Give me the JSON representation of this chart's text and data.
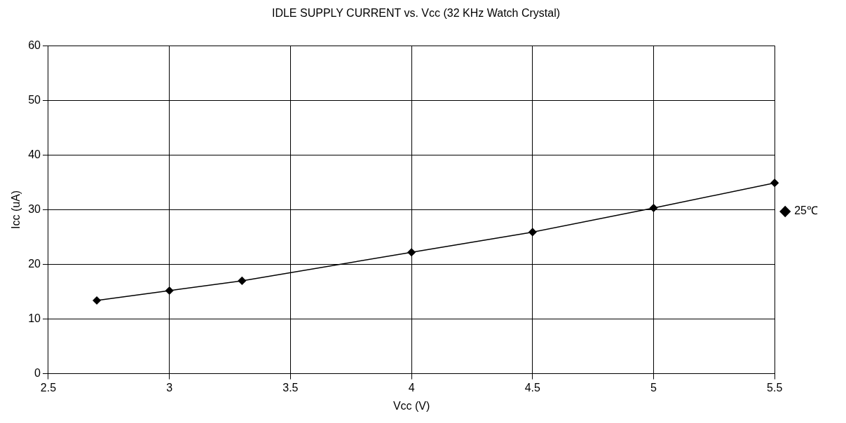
{
  "chart_data": {
    "type": "line",
    "title": "IDLE SUPPLY CURRENT vs. Vcc (32 KHz Watch Crystal)",
    "xlabel": "Vcc (V)",
    "ylabel": "Icc (uA)",
    "x": [
      2.7,
      3,
      3.3,
      4,
      4.5,
      5,
      5.5
    ],
    "series": [
      {
        "name": "25℃",
        "color": "#000000",
        "values": [
          13.4,
          15.2,
          17.0,
          22.2,
          25.9,
          30.3,
          34.9
        ]
      }
    ],
    "xlim": [
      2.5,
      5.5
    ],
    "xticks": [
      2.5,
      3,
      3.5,
      4,
      4.5,
      5,
      5.5
    ],
    "ylim": [
      0,
      60
    ],
    "yticks": [
      0,
      10,
      20,
      30,
      40,
      50,
      60
    ],
    "grid": true,
    "legend": "right",
    "marker": "diamond",
    "line_style": "solid"
  }
}
